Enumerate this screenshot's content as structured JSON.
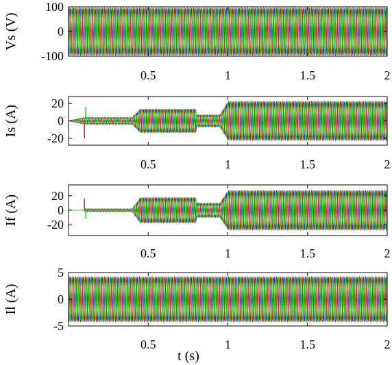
{
  "chart_data": [
    {
      "id": "vs",
      "type": "line",
      "title": "",
      "xlabel": "",
      "ylabel": "Vs (V)",
      "xlim": [
        0,
        2
      ],
      "ylim": [
        -100,
        100
      ],
      "xticks": [
        0.5,
        1,
        1.5,
        2
      ],
      "xtick_labels": [
        "0.5",
        "1",
        "1.5",
        "2"
      ],
      "yticks": [
        100,
        0,
        -100
      ],
      "ytick_labels": [
        "100",
        "0",
        "-100"
      ],
      "grid": false,
      "legend": "none",
      "frequency_hz": 50,
      "phases": 3,
      "series_colors": [
        "#d62728",
        "#1f3fd0",
        "#22dd00"
      ],
      "envelope": {
        "t": [
          0,
          2
        ],
        "amplitude": [
          98,
          98
        ]
      }
    },
    {
      "id": "is",
      "type": "line",
      "title": "",
      "xlabel": "",
      "ylabel": "Is (A)",
      "xlim": [
        0,
        2
      ],
      "ylim": [
        -28,
        28
      ],
      "xticks": [
        0.5,
        1,
        1.5,
        2
      ],
      "xtick_labels": [
        "0.5",
        "1",
        "1.5",
        "2"
      ],
      "yticks": [
        20,
        0,
        -20
      ],
      "ytick_labels": [
        "20",
        "0",
        "-20"
      ],
      "grid": false,
      "legend": "none",
      "frequency_hz": 50,
      "phases": 3,
      "series_colors": [
        "#d62728",
        "#1f3fd0",
        "#22dd00"
      ],
      "envelope": {
        "t": [
          0,
          0.1,
          0.4,
          0.45,
          0.8,
          0.8,
          0.95,
          1.0,
          2.0
        ],
        "amplitude": [
          0,
          4,
          4,
          14,
          14,
          7,
          7,
          23,
          23
        ]
      },
      "transient": {
        "t": 0.1,
        "values": [
          -20,
          16
        ]
      }
    },
    {
      "id": "if",
      "type": "line",
      "title": "",
      "xlabel": "",
      "ylabel": "If (A)",
      "xlim": [
        0,
        2
      ],
      "ylim": [
        -35,
        35
      ],
      "xticks": [
        0.5,
        1,
        1.5,
        2
      ],
      "xtick_labels": [
        "0.5",
        "1",
        "1.5",
        "2"
      ],
      "yticks": [
        20,
        0,
        -20
      ],
      "ytick_labels": [
        "20",
        "0",
        "-20"
      ],
      "grid": false,
      "legend": "none",
      "frequency_hz": 50,
      "phases": 3,
      "series_colors": [
        "#d62728",
        "#1f3fd0",
        "#22dd00"
      ],
      "envelope": {
        "t": [
          0,
          0.1,
          0.1,
          0.4,
          0.45,
          0.8,
          0.8,
          0.95,
          1.0,
          2.0
        ],
        "amplitude": [
          0,
          0,
          2,
          2,
          18,
          18,
          10,
          10,
          28,
          28
        ]
      },
      "transient": {
        "t": 0.1,
        "values": [
          16,
          -12
        ]
      }
    },
    {
      "id": "il",
      "type": "line",
      "title": "",
      "xlabel": "t (s)",
      "ylabel": "Il (A)",
      "xlim": [
        0,
        2
      ],
      "ylim": [
        -5,
        5
      ],
      "xticks": [
        0.5,
        1,
        1.5,
        2
      ],
      "xtick_labels": [
        "0.5",
        "1",
        "1.5",
        "2"
      ],
      "yticks": [
        5,
        0,
        -5
      ],
      "ytick_labels": [
        "5",
        "0",
        "-5"
      ],
      "grid": false,
      "legend": "none",
      "frequency_hz": 50,
      "phases": 3,
      "series_colors": [
        "#d62728",
        "#1f3fd0",
        "#22dd00"
      ],
      "envelope": {
        "t": [
          0,
          2
        ],
        "amplitude": [
          4.3,
          4.3
        ]
      }
    }
  ]
}
